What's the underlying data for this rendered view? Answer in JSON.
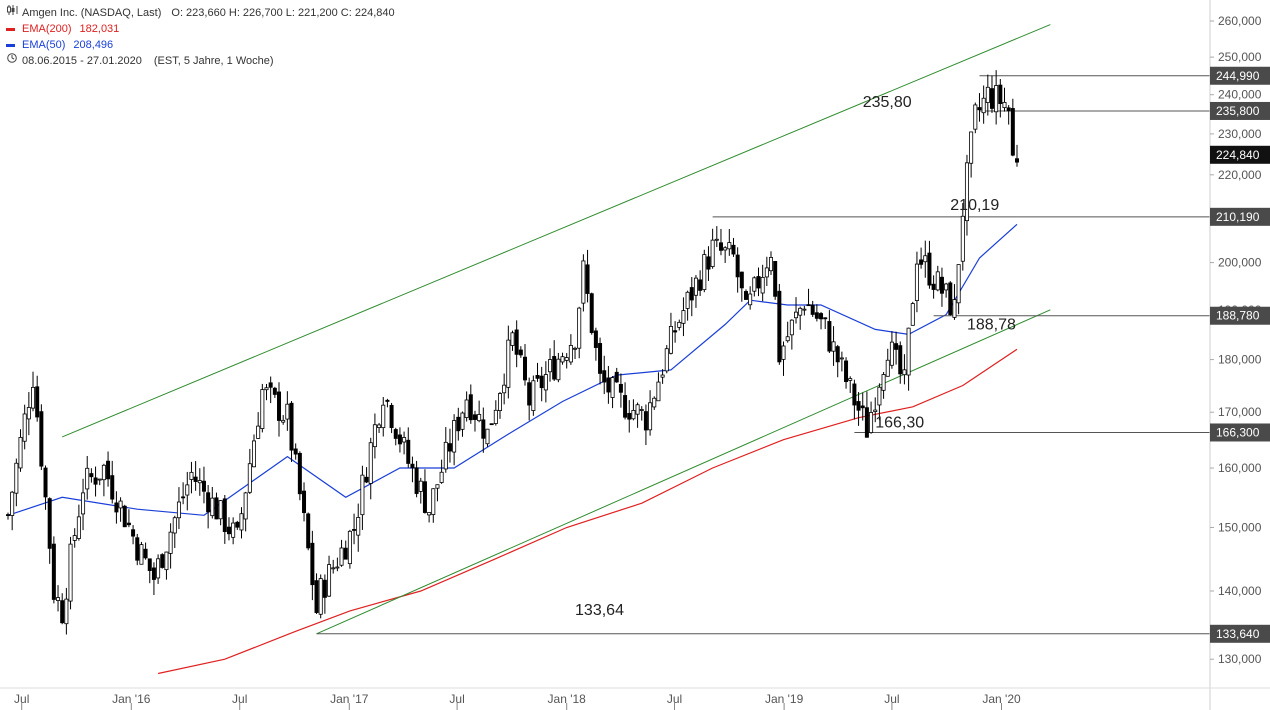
{
  "legend": {
    "title": "Amgen Inc. (NASDAQ, Last)",
    "ohlc": "O: 223,660  H: 226,700  L: 221,200  C: 224,840",
    "ema200_label": "EMA(200)",
    "ema200_value": "182,031",
    "ema50_label": "EMA(50)",
    "ema50_value": "208,496",
    "range": "08.06.2015 - 27.01.2020",
    "range_info": "(EST, 5 Jahre, 1 Woche)",
    "chart_icon": "candlestick-icon",
    "clock_icon": "clock-icon"
  },
  "colors": {
    "ema200": "#e02020",
    "ema50": "#1a3fd8",
    "trend": "#2e8b2e",
    "level": "#555555",
    "candle": "#000000",
    "axis_label_bg": "#4a4a4a"
  },
  "chart_data": {
    "type": "candlestick",
    "title": "Amgen Inc. (NASDAQ, Last)",
    "y_scale": "log",
    "ylim": [
      126,
      266
    ],
    "y_ticks": [
      {
        "value": 130,
        "label": "130,000"
      },
      {
        "value": 140,
        "label": "140,000"
      },
      {
        "value": 150,
        "label": "150,000"
      },
      {
        "value": 160,
        "label": "160,000"
      },
      {
        "value": 170,
        "label": "170,000"
      },
      {
        "value": 180,
        "label": "180,000"
      },
      {
        "value": 190,
        "label": "190,000"
      },
      {
        "value": 200,
        "label": "200,000"
      },
      {
        "value": 210,
        "label": "210,000"
      },
      {
        "value": 220,
        "label": "220,000"
      },
      {
        "value": 230,
        "label": "230,000"
      },
      {
        "value": 240,
        "label": "240,000"
      },
      {
        "value": 250,
        "label": "250,000"
      },
      {
        "value": 260,
        "label": "260,000"
      }
    ],
    "x_ticks": [
      {
        "date": "2015-07-01",
        "label": "Jul"
      },
      {
        "date": "2016-01-01",
        "label": "Jan '16"
      },
      {
        "date": "2016-07-01",
        "label": "Jul"
      },
      {
        "date": "2017-01-01",
        "label": "Jan '17"
      },
      {
        "date": "2017-07-01",
        "label": "Jul"
      },
      {
        "date": "2018-01-01",
        "label": "Jan '18"
      },
      {
        "date": "2018-07-01",
        "label": "Jul"
      },
      {
        "date": "2019-01-01",
        "label": "Jan '19"
      },
      {
        "date": "2019-07-01",
        "label": "Jul"
      },
      {
        "date": "2020-01-01",
        "label": "Jan '20"
      }
    ],
    "x_range": [
      "2015-06-08",
      "2020-01-27"
    ],
    "price_keypoints": [
      [
        "2015-06-08",
        152
      ],
      [
        "2015-07-20",
        177
      ],
      [
        "2015-08-24",
        140
      ],
      [
        "2015-09-07",
        137
      ],
      [
        "2015-10-12",
        157
      ],
      [
        "2015-11-16",
        160
      ],
      [
        "2016-01-11",
        147
      ],
      [
        "2016-02-08",
        142
      ],
      [
        "2016-04-11",
        159
      ],
      [
        "2016-06-27",
        148
      ],
      [
        "2016-08-08",
        174
      ],
      [
        "2016-09-19",
        169
      ],
      [
        "2016-11-07",
        137
      ],
      [
        "2016-11-14",
        140
      ],
      [
        "2017-01-09",
        150
      ],
      [
        "2017-02-27",
        174
      ],
      [
        "2017-04-10",
        161
      ],
      [
        "2017-05-15",
        153
      ],
      [
        "2017-07-17",
        173
      ],
      [
        "2017-08-21",
        166
      ],
      [
        "2017-10-02",
        184
      ],
      [
        "2017-10-30",
        172
      ],
      [
        "2018-01-15",
        185
      ],
      [
        "2018-01-29",
        198
      ],
      [
        "2018-02-26",
        176
      ],
      [
        "2018-04-02",
        172
      ],
      [
        "2018-05-14",
        169
      ],
      [
        "2018-07-02",
        186
      ],
      [
        "2018-09-03",
        203
      ],
      [
        "2018-10-08",
        201
      ],
      [
        "2018-10-29",
        189
      ],
      [
        "2018-12-10",
        203
      ],
      [
        "2018-12-24",
        181
      ],
      [
        "2019-02-04",
        192
      ],
      [
        "2019-03-11",
        186
      ],
      [
        "2019-04-22",
        174
      ],
      [
        "2019-05-20",
        167
      ],
      [
        "2019-06-24",
        183
      ],
      [
        "2019-07-22",
        175
      ],
      [
        "2019-08-12",
        202
      ],
      [
        "2019-09-23",
        194
      ],
      [
        "2019-10-14",
        190
      ],
      [
        "2019-10-28",
        212
      ],
      [
        "2019-11-18",
        234
      ],
      [
        "2019-12-09",
        240
      ],
      [
        "2020-01-06",
        238
      ],
      [
        "2020-01-13",
        236
      ],
      [
        "2020-01-20",
        224
      ],
      [
        "2020-01-27",
        224.84
      ]
    ],
    "ema50_keypoints": [
      [
        "2015-06-08",
        152
      ],
      [
        "2015-09-07",
        155
      ],
      [
        "2016-01-11",
        153
      ],
      [
        "2016-05-02",
        152
      ],
      [
        "2016-09-19",
        162
      ],
      [
        "2016-12-26",
        155
      ],
      [
        "2017-03-27",
        160
      ],
      [
        "2017-06-26",
        160
      ],
      [
        "2017-09-25",
        166
      ],
      [
        "2017-12-25",
        172
      ],
      [
        "2018-03-26",
        177
      ],
      [
        "2018-06-25",
        178
      ],
      [
        "2018-09-24",
        187
      ],
      [
        "2018-11-05",
        192
      ],
      [
        "2019-01-07",
        191
      ],
      [
        "2019-03-04",
        191
      ],
      [
        "2019-06-03",
        186
      ],
      [
        "2019-07-29",
        185
      ],
      [
        "2019-09-30",
        189
      ],
      [
        "2019-11-25",
        201
      ],
      [
        "2020-01-27",
        208.496
      ]
    ],
    "ema200_keypoints": [
      [
        "2016-02-15",
        128
      ],
      [
        "2016-06-06",
        130
      ],
      [
        "2016-10-03",
        134
      ],
      [
        "2017-01-02",
        137
      ],
      [
        "2017-05-01",
        140
      ],
      [
        "2017-09-04",
        145
      ],
      [
        "2018-01-01",
        150
      ],
      [
        "2018-05-07",
        154
      ],
      [
        "2018-09-03",
        160
      ],
      [
        "2018-12-31",
        165
      ],
      [
        "2019-05-06",
        169
      ],
      [
        "2019-08-05",
        171
      ],
      [
        "2019-10-28",
        175
      ],
      [
        "2020-01-27",
        182.031
      ]
    ],
    "trendlines": [
      {
        "name": "upper-channel-line",
        "from": [
          "2015-09-07",
          165.5
        ],
        "to": [
          "2020-03-23",
          259
        ]
      },
      {
        "name": "lower-channel-line",
        "from": [
          "2016-11-07",
          133.64
        ],
        "to": [
          "2020-03-23",
          190
        ]
      }
    ],
    "levels": [
      {
        "value": 244.99,
        "from": "2019-11-25",
        "axis_label": "244,990"
      },
      {
        "value": 235.8,
        "from": "2019-11-25",
        "axis_label": "235,800",
        "annotation": "235,80"
      },
      {
        "value": 210.19,
        "from": "2018-09-03",
        "axis_label": "210,190",
        "annotation": "210,19"
      },
      {
        "value": 188.78,
        "from": "2019-09-09",
        "axis_label": "188,780",
        "annotation": "188,78"
      },
      {
        "value": 166.3,
        "from": "2019-04-29",
        "axis_label": "166,300",
        "annotation": "166,30"
      },
      {
        "value": 133.64,
        "from": "2016-11-07",
        "axis_label": "133,640",
        "annotation": "133,64"
      }
    ],
    "last_price": {
      "value": 224.84,
      "label": "224,840"
    }
  }
}
